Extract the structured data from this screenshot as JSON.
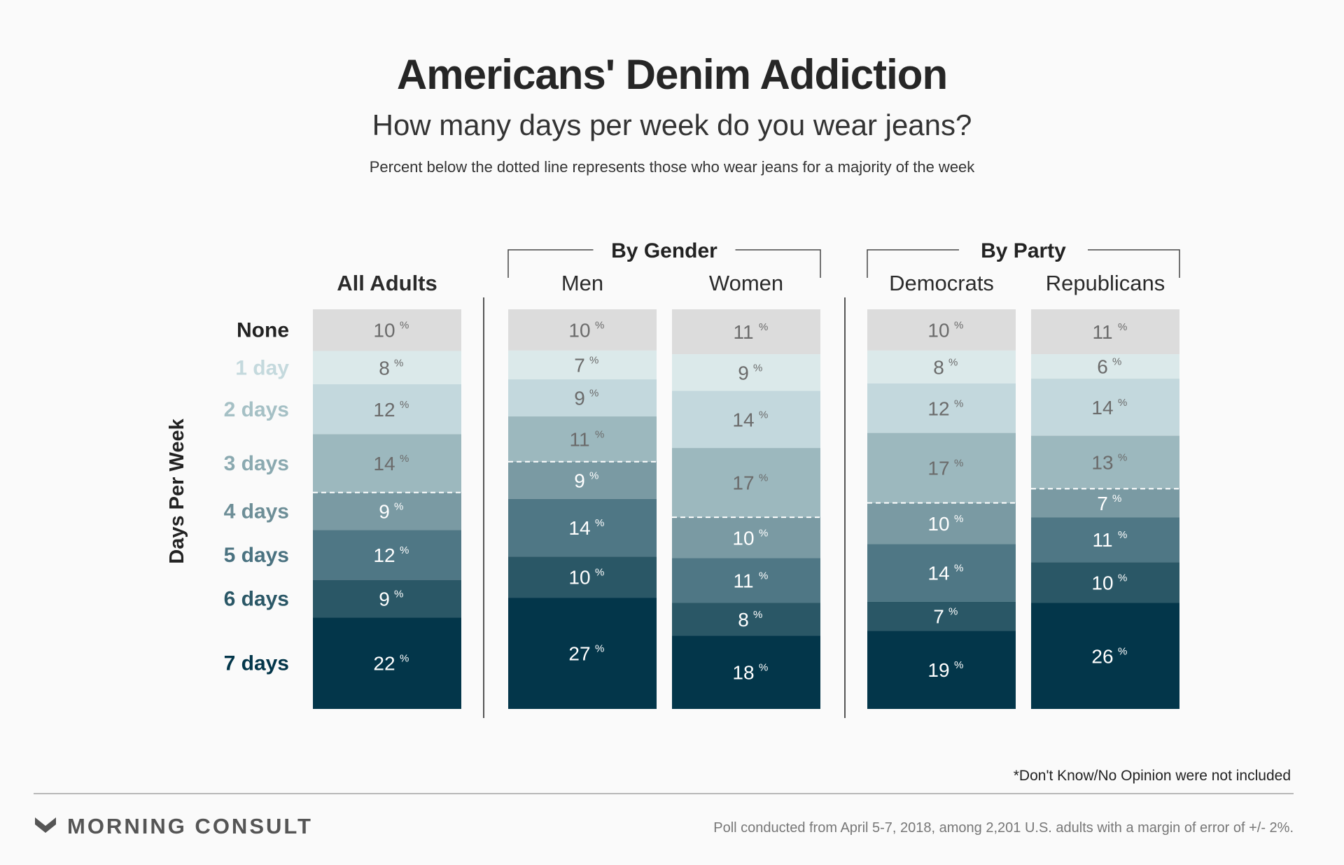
{
  "header": {
    "title": "Americans' Denim Addiction",
    "subtitle": "How many days per week do you wear jeans?",
    "note": "Percent below the dotted line represents those who wear jeans for a majority of the week"
  },
  "chart_data": {
    "type": "bar",
    "stacked": true,
    "orientation": "vertical",
    "ylabel": "Days Per Week",
    "unit": "%",
    "categories": [
      "None",
      "1 day",
      "2 days",
      "3 days",
      "4 days",
      "5 days",
      "6 days",
      "7 days"
    ],
    "category_colors": [
      "#dcdcdc",
      "#dbe9ea",
      "#c3d8dd",
      "#9cb8be",
      "#7a9aa3",
      "#4f7785",
      "#2a5766",
      "#03364a"
    ],
    "label_colors": [
      "#222222",
      "#c4d9dd",
      "#a5c0c5",
      "#8aa9b0",
      "#6d8e97",
      "#4a7280",
      "#2a5766",
      "#03364a"
    ],
    "groups": [
      {
        "label": "",
        "columns": [
          "All Adults"
        ]
      },
      {
        "label": "By Gender",
        "columns": [
          "Men",
          "Women"
        ]
      },
      {
        "label": "By Party",
        "columns": [
          "Democrats",
          "Republicans"
        ]
      }
    ],
    "series": [
      {
        "name": "All Adults",
        "values": [
          10,
          8,
          12,
          14,
          9,
          12,
          9,
          22
        ]
      },
      {
        "name": "Men",
        "values": [
          10,
          7,
          9,
          11,
          9,
          14,
          10,
          27
        ]
      },
      {
        "name": "Women",
        "values": [
          11,
          9,
          14,
          17,
          10,
          11,
          8,
          18
        ]
      },
      {
        "name": "Democrats",
        "values": [
          10,
          8,
          12,
          17,
          10,
          14,
          7,
          19
        ]
      },
      {
        "name": "Republicans",
        "values": [
          11,
          6,
          14,
          13,
          7,
          11,
          10,
          26
        ]
      }
    ],
    "majority_threshold_category": "4 days"
  },
  "footer": {
    "disclaimer": "*Don't Know/No Opinion were not included",
    "brand": "MORNING CONSULT",
    "brand_icon": "morning-consult-chevron-icon",
    "poll_info": "Poll conducted from April 5-7, 2018, among 2,201 U.S. adults with a margin of error of +/- 2%."
  }
}
